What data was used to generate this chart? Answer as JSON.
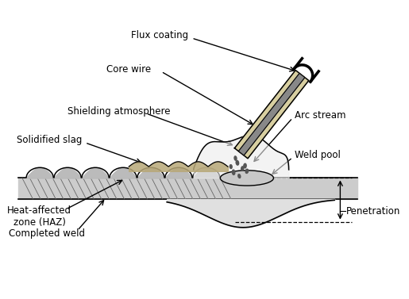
{
  "labels": {
    "flux_coating": "Flux coating",
    "core_wire": "Core wire",
    "shielding_atmosphere": "Shielding atmosphere",
    "solidified_slag": "Solidified slag",
    "arc_stream": "Arc stream",
    "weld_pool": "Weld pool",
    "heat_affected_zone": "Heat-affected\nzone (HAZ)",
    "penetration": "Penetration",
    "completed_weld": "Completed weld"
  },
  "bg_color": "#ffffff",
  "line_color": "#000000",
  "fig_width": 5.15,
  "fig_height": 3.77,
  "dpi": 100
}
